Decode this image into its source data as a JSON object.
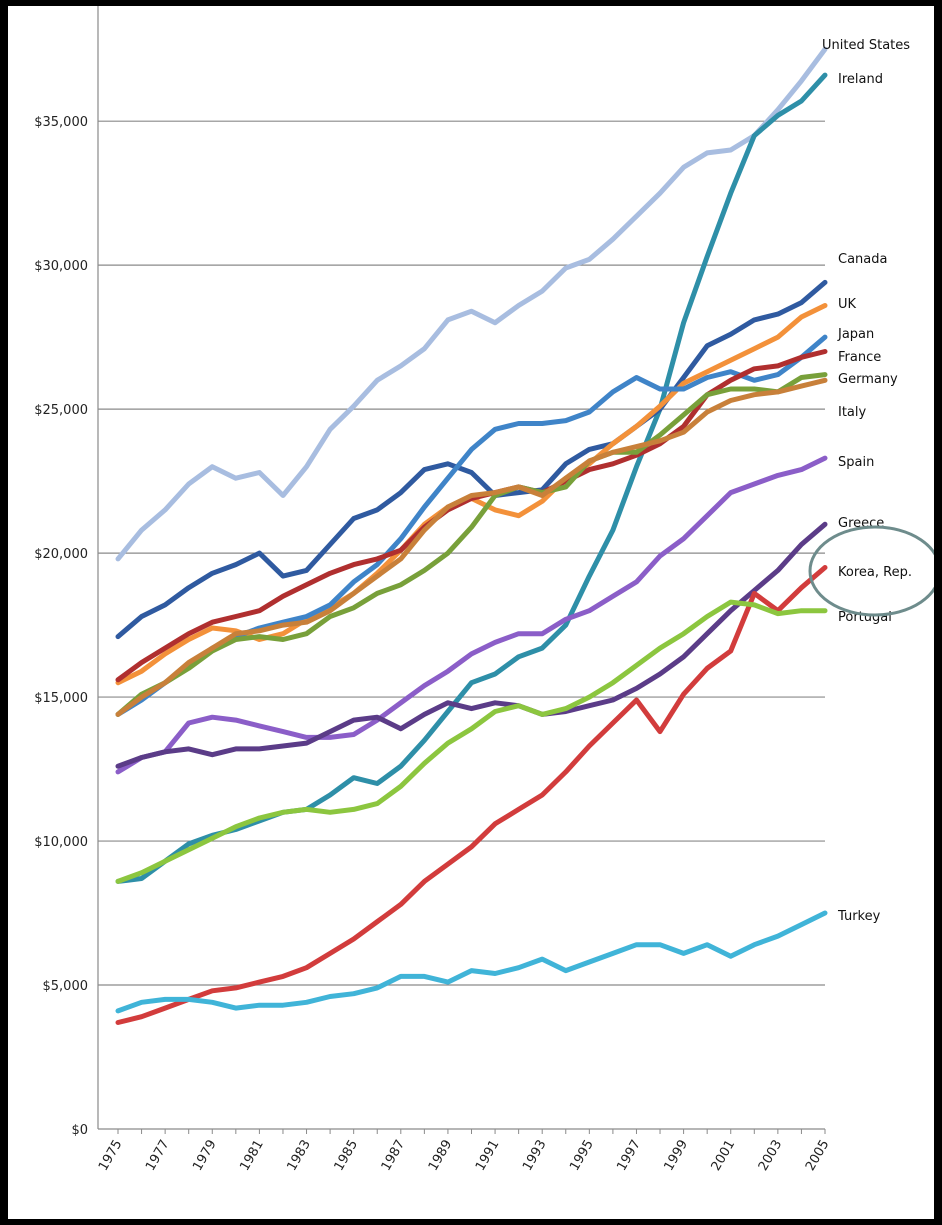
{
  "chart_data": {
    "type": "line",
    "title": "",
    "xlabel": "",
    "ylabel": "",
    "ylim": [
      0,
      35000
    ],
    "yticks": [
      0,
      5000,
      10000,
      15000,
      20000,
      25000,
      30000,
      35000
    ],
    "ytick_labels": [
      "$0",
      "$5,000",
      "$10,000",
      "$15,000",
      "$20,000",
      "$25,000",
      "$30,000",
      "$35,000"
    ],
    "xlim": [
      1975,
      2005
    ],
    "xtick_labels": [
      "1975",
      "1977",
      "1979",
      "1981",
      "1983",
      "1985",
      "1987",
      "1989",
      "1991",
      "1993",
      "1995",
      "1997",
      "1999",
      "2001",
      "2003",
      "2005"
    ],
    "grid": true,
    "legend": "direct labels at right end of lines",
    "x": [
      1975,
      1976,
      1977,
      1978,
      1979,
      1980,
      1981,
      1982,
      1983,
      1984,
      1985,
      1986,
      1987,
      1988,
      1989,
      1990,
      1991,
      1992,
      1993,
      1994,
      1995,
      1996,
      1997,
      1998,
      1999,
      2000,
      2001,
      2002,
      2003,
      2004,
      2005
    ],
    "series": [
      {
        "name": "United States",
        "color": "#a8bde0",
        "values": [
          19800,
          20800,
          21500,
          22400,
          23000,
          22600,
          22800,
          22000,
          23000,
          24300,
          25100,
          26000,
          26500,
          27100,
          28100,
          28400,
          28000,
          28600,
          29100,
          29900,
          30200,
          30900,
          31700,
          32500,
          33400,
          33900,
          34000,
          34500,
          35400,
          36400,
          37500
        ]
      },
      {
        "name": "Ireland",
        "color": "#2e8fa8",
        "values": [
          8600,
          8700,
          9300,
          9900,
          10200,
          10400,
          10700,
          11000,
          11100,
          11600,
          12200,
          12000,
          12600,
          13500,
          14500,
          15500,
          15800,
          16400,
          16700,
          17500,
          19200,
          20800,
          23000,
          25000,
          28000,
          30300,
          32500,
          34500,
          35200,
          35700,
          36600
        ]
      },
      {
        "name": "Canada",
        "color": "#2f5aa0",
        "values": [
          17100,
          17800,
          18200,
          18800,
          19300,
          19600,
          20000,
          19200,
          19400,
          20300,
          21200,
          21500,
          22100,
          22900,
          23100,
          22800,
          22000,
          22100,
          22200,
          23100,
          23600,
          23800,
          24400,
          25000,
          26100,
          27200,
          27600,
          28100,
          28300,
          28700,
          29400
        ]
      },
      {
        "name": "UK",
        "color": "#f3913a",
        "values": [
          15500,
          15900,
          16500,
          17000,
          17400,
          17300,
          17000,
          17200,
          17700,
          18100,
          18600,
          19300,
          20100,
          21000,
          21600,
          21900,
          21500,
          21300,
          21800,
          22600,
          23100,
          23800,
          24400,
          25100,
          25900,
          26300,
          26700,
          27100,
          27500,
          28200,
          28600
        ]
      },
      {
        "name": "Japan",
        "color": "#3f84c8",
        "values": [
          14400,
          14900,
          15500,
          16100,
          16700,
          17100,
          17400,
          17600,
          17800,
          18200,
          19000,
          19600,
          20500,
          21600,
          22600,
          23600,
          24300,
          24500,
          24500,
          24600,
          24900,
          25600,
          26100,
          25700,
          25700,
          26100,
          26300,
          26000,
          26200,
          26800,
          27500
        ]
      },
      {
        "name": "France",
        "color": "#b02f2f",
        "values": [
          15600,
          16200,
          16700,
          17200,
          17600,
          17800,
          18000,
          18500,
          18900,
          19300,
          19600,
          19800,
          20100,
          20900,
          21500,
          21900,
          22100,
          22300,
          22100,
          22500,
          22900,
          23100,
          23400,
          23800,
          24400,
          25500,
          26000,
          26400,
          26500,
          26800,
          27000
        ]
      },
      {
        "name": "Germany",
        "color": "#78a03a",
        "values": [
          14400,
          15100,
          15500,
          16000,
          16600,
          17000,
          17100,
          17000,
          17200,
          17800,
          18100,
          18600,
          18900,
          19400,
          20000,
          20900,
          22000,
          22300,
          22100,
          22300,
          23200,
          23500,
          23500,
          24100,
          24800,
          25500,
          25700,
          25700,
          25600,
          26100,
          26200
        ]
      },
      {
        "name": "Italy",
        "color": "#c8803a",
        "values": [
          14400,
          15000,
          15500,
          16200,
          16700,
          17200,
          17300,
          17500,
          17600,
          18000,
          18600,
          19200,
          19800,
          20800,
          21600,
          22000,
          22100,
          22300,
          22000,
          22600,
          23200,
          23500,
          23700,
          23900,
          24200,
          24900,
          25300,
          25500,
          25600,
          25800,
          26000
        ]
      },
      {
        "name": "Spain",
        "color": "#8b5ec8",
        "values": [
          12400,
          12900,
          13100,
          14100,
          14300,
          14200,
          14000,
          13800,
          13600,
          13600,
          13700,
          14200,
          14800,
          15400,
          15900,
          16500,
          16900,
          17200,
          17200,
          17700,
          18000,
          18500,
          19000,
          19900,
          20500,
          21300,
          22100,
          22400,
          22700,
          22900,
          23300
        ]
      },
      {
        "name": "Greece",
        "color": "#5b3c88",
        "values": [
          12600,
          12900,
          13100,
          13200,
          13000,
          13200,
          13200,
          13300,
          13400,
          13800,
          14200,
          14300,
          13900,
          14400,
          14800,
          14600,
          14800,
          14700,
          14400,
          14500,
          14700,
          14900,
          15300,
          15800,
          16400,
          17200,
          18000,
          18700,
          19400,
          20300,
          21000
        ]
      },
      {
        "name": "Korea, Rep.",
        "color": "#d23c3c",
        "values": [
          3700,
          3900,
          4200,
          4500,
          4800,
          4900,
          5100,
          5300,
          5600,
          6100,
          6600,
          7200,
          7800,
          8600,
          9200,
          9800,
          10600,
          11100,
          11600,
          12400,
          13300,
          14100,
          14900,
          13800,
          15100,
          16000,
          16600,
          18600,
          18000,
          18800,
          19500
        ]
      },
      {
        "name": "Portugal",
        "color": "#8cc63f",
        "values": [
          8600,
          8900,
          9300,
          9700,
          10100,
          10500,
          10800,
          11000,
          11100,
          11000,
          11100,
          11300,
          11900,
          12700,
          13400,
          13900,
          14500,
          14700,
          14400,
          14600,
          15000,
          15500,
          16100,
          16700,
          17200,
          17800,
          18300,
          18200,
          17900,
          18000,
          18000
        ]
      },
      {
        "name": "Turkey",
        "color": "#40b4d8",
        "values": [
          4100,
          4400,
          4500,
          4500,
          4400,
          4200,
          4300,
          4300,
          4400,
          4600,
          4700,
          4900,
          5300,
          5300,
          5100,
          5500,
          5400,
          5600,
          5900,
          5500,
          5800,
          6100,
          6400,
          6400,
          6100,
          6400,
          6000,
          6400,
          6700,
          7100,
          7500
        ]
      }
    ]
  }
}
